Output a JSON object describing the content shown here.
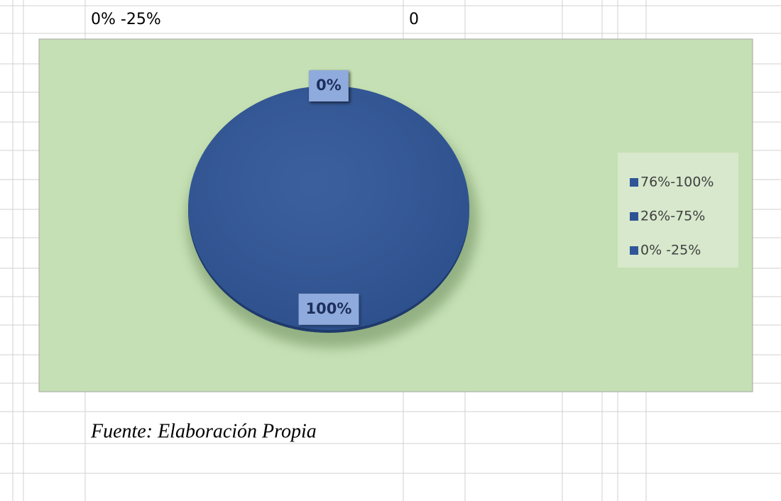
{
  "cells": {
    "top_label": "0% -25%",
    "top_value": 0,
    "source": "Fuente: Elaboración Propia"
  },
  "chart_data": {
    "type": "pie",
    "categories": [
      "76%-100%",
      "26%-75%",
      "0% -25%"
    ],
    "values": [
      100,
      0,
      0
    ],
    "value_labels": [
      "100%",
      "0%",
      "0%"
    ],
    "colors": [
      "#2f5597",
      "#2e5395",
      "#305699"
    ],
    "legend": "right"
  }
}
